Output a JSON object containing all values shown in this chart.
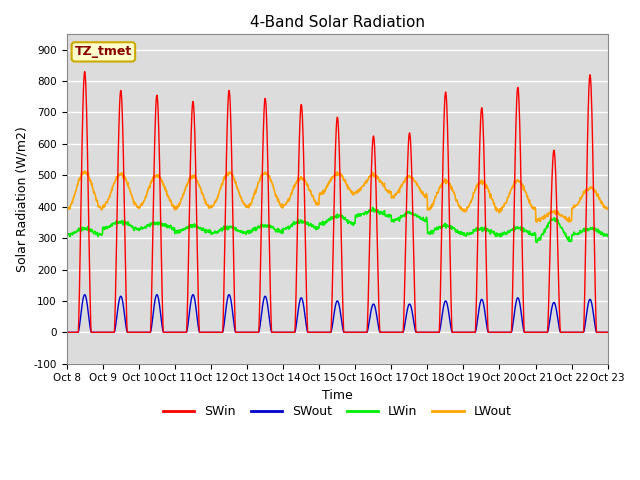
{
  "title": "4-Band Solar Radiation",
  "ylabel": "Solar Radiation (W/m2)",
  "xlabel": "Time",
  "ylim": [
    -100,
    950
  ],
  "annotation_text": "TZ_tmet",
  "annotation_bg": "#FFFFCC",
  "annotation_border": "#CCAA00",
  "background_color": "#DCDCDC",
  "grid_color": "white",
  "series": {
    "SWin": {
      "color": "#FF0000",
      "linewidth": 1.0
    },
    "SWout": {
      "color": "#0000CC",
      "linewidth": 1.0
    },
    "LWin": {
      "color": "#00EE00",
      "linewidth": 1.2
    },
    "LWout": {
      "color": "#FFA500",
      "linewidth": 1.2
    }
  },
  "xtick_labels": [
    "Oct 8",
    "Oct 9",
    "Oct 10",
    "Oct 11",
    "Oct 12",
    "Oct 13",
    "Oct 14",
    "Oct 15",
    "Oct 16",
    "Oct 17",
    "Oct 18",
    "Oct 19",
    "Oct 20",
    "Oct 21",
    "Oct 22",
    "Oct 23"
  ],
  "days": 15,
  "pts_per_day": 96,
  "SWin_peaks": [
    830,
    770,
    755,
    735,
    770,
    745,
    725,
    685,
    625,
    635,
    765,
    715,
    780,
    580,
    820
  ],
  "SWout_peaks": [
    120,
    115,
    120,
    120,
    120,
    115,
    110,
    100,
    90,
    90,
    100,
    105,
    110,
    95,
    105
  ],
  "LWin_base": [
    310,
    330,
    330,
    320,
    315,
    320,
    330,
    345,
    370,
    355,
    315,
    310,
    310,
    290,
    310
  ],
  "LWout_base": [
    390,
    400,
    400,
    395,
    400,
    400,
    405,
    440,
    445,
    430,
    390,
    385,
    390,
    355,
    395
  ],
  "LWin_day_rise": [
    20,
    22,
    18,
    18,
    20,
    20,
    22,
    25,
    18,
    25,
    25,
    20,
    22,
    70,
    20
  ],
  "LWout_day_rise": [
    120,
    105,
    100,
    100,
    108,
    108,
    85,
    65,
    55,
    65,
    92,
    95,
    92,
    28,
    65
  ],
  "title_fontsize": 11,
  "label_fontsize": 9,
  "tick_fontsize": 7.5,
  "legend_fontsize": 9
}
